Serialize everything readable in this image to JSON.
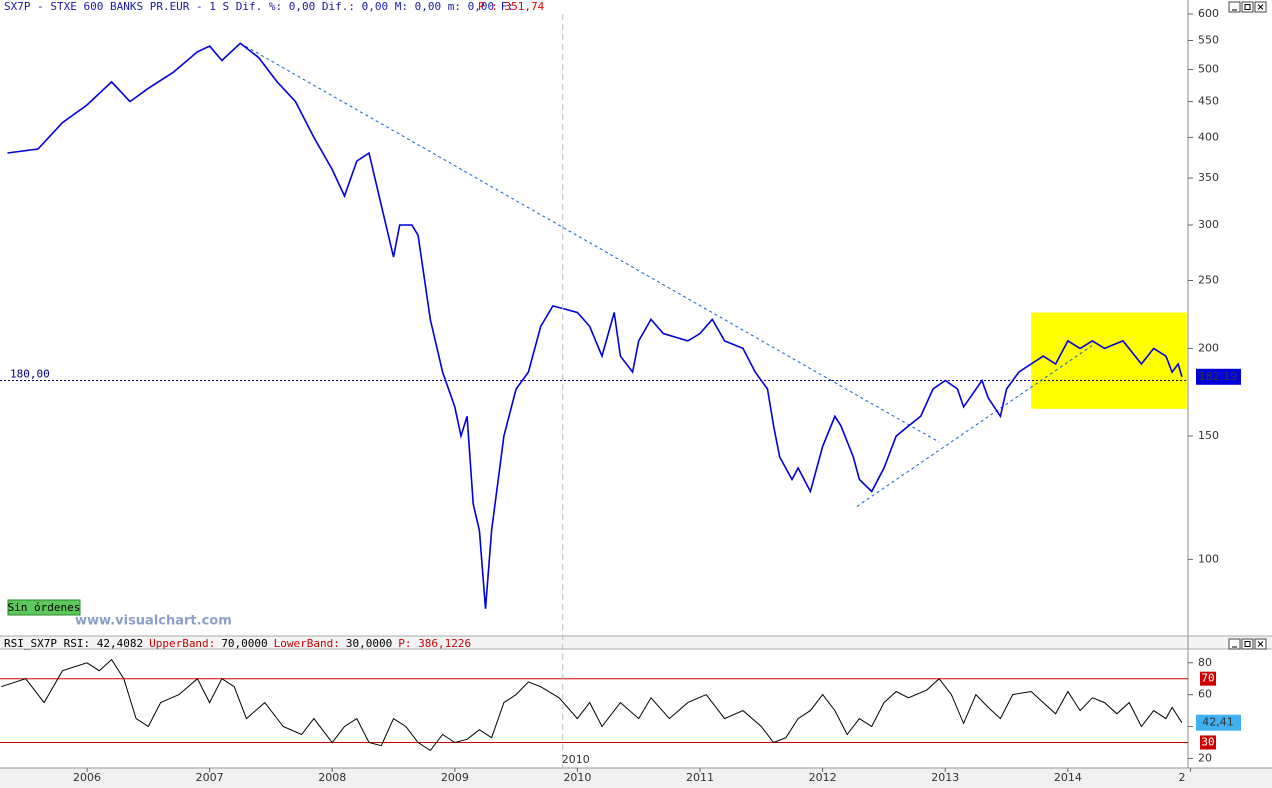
{
  "chart_data": [
    {
      "type": "line",
      "title": "SX7P - STXE 600 BANKS PR.EUR -  1 S Dif. %: 0,00 Dif.: 0,00 M: 0,00 m: 0,00 F:",
      "title_extra": "P : 351,74",
      "log_scale": true,
      "grid": false,
      "xlim": [
        2005.29,
        2014.98
      ],
      "xticks": [
        2006,
        2007,
        2008,
        2009,
        2010,
        2011,
        2012,
        2013,
        2014,
        {
          "value": 2015,
          "label": "2"
        }
      ],
      "ylim": [
        78,
        600
      ],
      "yticks": [
        100,
        150,
        200,
        250,
        300,
        350,
        400,
        450,
        500,
        550,
        600
      ],
      "x": [
        2005.35,
        2005.6,
        2005.8,
        2006.0,
        2006.2,
        2006.35,
        2006.5,
        2006.7,
        2006.9,
        2007.0,
        2007.1,
        2007.25,
        2007.4,
        2007.55,
        2007.7,
        2007.85,
        2008.0,
        2008.1,
        2008.2,
        2008.3,
        2008.4,
        2008.5,
        2008.55,
        2008.65,
        2008.7,
        2008.8,
        2008.9,
        2009.0,
        2009.05,
        2009.1,
        2009.15,
        2009.2,
        2009.25,
        2009.3,
        2009.4,
        2009.5,
        2009.6,
        2009.7,
        2009.8,
        2010.0,
        2010.1,
        2010.2,
        2010.3,
        2010.35,
        2010.45,
        2010.5,
        2010.6,
        2010.7,
        2010.9,
        2011.0,
        2011.1,
        2011.2,
        2011.35,
        2011.45,
        2011.55,
        2011.6,
        2011.65,
        2011.75,
        2011.8,
        2011.9,
        2012.0,
        2012.1,
        2012.15,
        2012.25,
        2012.3,
        2012.4,
        2012.5,
        2012.6,
        2012.7,
        2012.8,
        2012.9,
        2013.0,
        2013.1,
        2013.15,
        2013.3,
        2013.35,
        2013.45,
        2013.5,
        2013.6,
        2013.7,
        2013.8,
        2013.9,
        2014.0,
        2014.1,
        2014.2,
        2014.3,
        2014.45,
        2014.6,
        2014.7,
        2014.8,
        2014.85,
        2014.9,
        2014.93
      ],
      "series": [
        {
          "name": "SX7P",
          "color": "#0000dd",
          "values": [
            380,
            385,
            420,
            445,
            480,
            450,
            470,
            495,
            530,
            540,
            515,
            545,
            520,
            480,
            450,
            400,
            360,
            330,
            370,
            380,
            320,
            270,
            300,
            300,
            290,
            220,
            185,
            165,
            150,
            160,
            120,
            110,
            85,
            110,
            150,
            175,
            185,
            215,
            230,
            225,
            215,
            195,
            225,
            195,
            185,
            205,
            220,
            210,
            205,
            210,
            220,
            205,
            200,
            185,
            175,
            155,
            140,
            130,
            135,
            125,
            145,
            160,
            155,
            140,
            130,
            125,
            135,
            150,
            155,
            160,
            175,
            180,
            175,
            165,
            180,
            170,
            160,
            175,
            185,
            190,
            195,
            190,
            205,
            200,
            205,
            200,
            205,
            190,
            200,
            195,
            185,
            190,
            182.19
          ]
        }
      ],
      "reference_line": {
        "value": 180,
        "label": "180,00",
        "color": "#000080"
      },
      "last_value": {
        "value": 182.19,
        "label": "182,19",
        "color": "#0000dd"
      },
      "highlight": {
        "xlim": [
          2013.7,
          2014.97
        ],
        "ylim": [
          164,
          225
        ],
        "color": "#ffff00"
      },
      "trendlines": [
        {
          "x": [
            2007.25,
            2012.95
          ],
          "y": [
            545,
            147
          ],
          "color": "#1060d0"
        },
        {
          "x": [
            2012.28,
            2014.2
          ],
          "y": [
            119,
            202
          ],
          "color": "#1060d0"
        }
      ],
      "crosshair": {
        "x": 2009.88,
        "label": "2010"
      }
    },
    {
      "type": "line",
      "title_parts": [
        {
          "text": "RSI_SX7P RSI: 42,4082",
          "color": "#000000"
        },
        {
          "text": "UpperBand:",
          "color": "#cc0000"
        },
        {
          "text": "70,0000",
          "color": "#000000"
        },
        {
          "text": "LowerBand:",
          "color": "#cc0000"
        },
        {
          "text": "30,0000",
          "color": "#000000"
        },
        {
          "text": "P: 386,1226",
          "color": "#cc0000"
        }
      ],
      "grid": false,
      "xlim": [
        2005.29,
        2014.98
      ],
      "ylim": [
        14,
        88
      ],
      "yticks": [
        20,
        40,
        60,
        80
      ],
      "x": [
        2005.3,
        2005.5,
        2005.65,
        2005.8,
        2006.0,
        2006.1,
        2006.2,
        2006.3,
        2006.4,
        2006.5,
        2006.6,
        2006.75,
        2006.9,
        2007.0,
        2007.1,
        2007.2,
        2007.3,
        2007.45,
        2007.6,
        2007.75,
        2007.85,
        2008.0,
        2008.1,
        2008.2,
        2008.3,
        2008.4,
        2008.5,
        2008.6,
        2008.7,
        2008.8,
        2008.9,
        2009.0,
        2009.1,
        2009.2,
        2009.3,
        2009.4,
        2009.5,
        2009.6,
        2009.7,
        2009.85,
        2010.0,
        2010.1,
        2010.2,
        2010.35,
        2010.5,
        2010.6,
        2010.75,
        2010.9,
        2011.05,
        2011.2,
        2011.35,
        2011.5,
        2011.6,
        2011.7,
        2011.8,
        2011.9,
        2012.0,
        2012.1,
        2012.2,
        2012.3,
        2012.4,
        2012.5,
        2012.6,
        2012.7,
        2012.85,
        2012.95,
        2013.05,
        2013.15,
        2013.25,
        2013.35,
        2013.45,
        2013.55,
        2013.7,
        2013.8,
        2013.9,
        2014.0,
        2014.1,
        2014.2,
        2014.3,
        2014.4,
        2014.5,
        2014.6,
        2014.7,
        2014.8,
        2014.85,
        2014.93
      ],
      "series": [
        {
          "name": "RSI",
          "color": "#000000",
          "values": [
            65,
            70,
            55,
            75,
            80,
            75,
            82,
            70,
            45,
            40,
            55,
            60,
            70,
            55,
            70,
            65,
            45,
            55,
            40,
            35,
            45,
            30,
            40,
            45,
            30,
            28,
            45,
            40,
            30,
            25,
            35,
            30,
            32,
            38,
            33,
            55,
            60,
            68,
            65,
            58,
            45,
            55,
            40,
            55,
            45,
            58,
            45,
            55,
            60,
            45,
            50,
            40,
            30,
            33,
            45,
            50,
            60,
            50,
            35,
            45,
            40,
            55,
            62,
            58,
            63,
            70,
            60,
            42,
            60,
            52,
            45,
            60,
            62,
            55,
            48,
            62,
            50,
            58,
            55,
            48,
            55,
            40,
            50,
            45,
            52,
            42.41
          ]
        }
      ],
      "bands": [
        {
          "value": 70,
          "color": "#cc0000"
        },
        {
          "value": 30,
          "color": "#cc0000"
        }
      ],
      "last_value": {
        "value": 42.41,
        "label": "42,41",
        "color": "#40b0f0"
      }
    }
  ],
  "ui": {
    "orders_button": "Sin órdenes",
    "watermark": "www.visualchart.com"
  }
}
